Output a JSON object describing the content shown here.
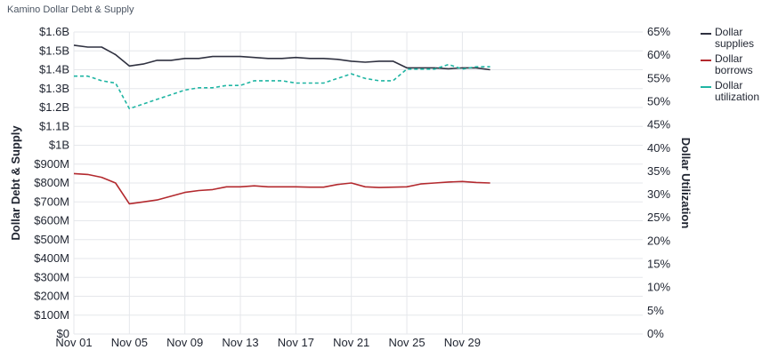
{
  "title": "Kamino Dollar Debt & Supply",
  "chart_data": {
    "type": "line",
    "title": "Kamino Dollar Debt & Supply",
    "xlabel": "",
    "ylabel": "Dollar Debt & Supply",
    "y2label": "Dollar Utilization",
    "xlim": [
      "2024-11-01",
      "2024-12-12"
    ],
    "ylim": [
      0,
      1600000000
    ],
    "y2lim": [
      0,
      65
    ],
    "grid": true,
    "legend": "right",
    "x_ticks": [
      "Nov 01",
      "Nov 05",
      "Nov 09",
      "Nov 13",
      "Nov 17",
      "Nov 21",
      "Nov 25",
      "Nov 29"
    ],
    "y_ticks": [
      "$0",
      "$100M",
      "$200M",
      "$300M",
      "$400M",
      "$500M",
      "$600M",
      "$700M",
      "$800M",
      "$900M",
      "$1B",
      "$1.1B",
      "$1.2B",
      "$1.3B",
      "$1.4B",
      "$1.5B",
      "$1.6B"
    ],
    "y2_ticks": [
      "0%",
      "5%",
      "10%",
      "15%",
      "20%",
      "25%",
      "30%",
      "35%",
      "40%",
      "45%",
      "50%",
      "55%",
      "60%",
      "65%"
    ],
    "x_dates": [
      "2024-11-01",
      "2024-11-02",
      "2024-11-03",
      "2024-11-04",
      "2024-11-05",
      "2024-11-06",
      "2024-11-07",
      "2024-11-08",
      "2024-11-09",
      "2024-11-10",
      "2024-11-11",
      "2024-11-12",
      "2024-11-13",
      "2024-11-14",
      "2024-11-15",
      "2024-11-16",
      "2024-11-17",
      "2024-11-18",
      "2024-11-19",
      "2024-11-20",
      "2024-11-21",
      "2024-11-22",
      "2024-11-23",
      "2024-11-24",
      "2024-11-25",
      "2024-11-26",
      "2024-11-27",
      "2024-11-28",
      "2024-11-29",
      "2024-11-30",
      "2024-12-01"
    ],
    "series": [
      {
        "name": "Dollar supplies",
        "axis": "left",
        "color": "#2f3140",
        "style": "solid",
        "values": [
          1530000000,
          1520000000,
          1520000000,
          1480000000,
          1420000000,
          1430000000,
          1450000000,
          1450000000,
          1460000000,
          1460000000,
          1470000000,
          1470000000,
          1470000000,
          1465000000,
          1460000000,
          1460000000,
          1465000000,
          1460000000,
          1460000000,
          1455000000,
          1445000000,
          1440000000,
          1445000000,
          1445000000,
          1410000000,
          1410000000,
          1410000000,
          1405000000,
          1410000000,
          1410000000,
          1400000000
        ]
      },
      {
        "name": "Dollar borrows",
        "axis": "left",
        "color": "#b3292e",
        "style": "solid",
        "values": [
          850000000,
          845000000,
          830000000,
          800000000,
          690000000,
          700000000,
          710000000,
          730000000,
          750000000,
          760000000,
          765000000,
          780000000,
          780000000,
          785000000,
          780000000,
          780000000,
          780000000,
          778000000,
          778000000,
          792000000,
          800000000,
          780000000,
          776000000,
          778000000,
          780000000,
          795000000,
          800000000,
          805000000,
          808000000,
          803000000,
          800000000
        ]
      },
      {
        "name": "Dollar utilization",
        "axis": "right",
        "color": "#1fb5a3",
        "style": "dashed",
        "values": [
          55.5,
          55.5,
          54.5,
          54,
          48.5,
          49.5,
          50.5,
          51.5,
          52.5,
          53,
          53,
          53.5,
          53.5,
          54.5,
          54.5,
          54.5,
          54,
          54,
          54,
          55,
          56,
          55,
          54.5,
          54.5,
          57,
          57,
          57,
          58,
          57,
          57.5,
          57.5
        ]
      }
    ]
  },
  "legend": {
    "items": [
      {
        "label": "Dollar supplies",
        "color": "#2f3140",
        "style": "solid"
      },
      {
        "label": "Dollar borrows",
        "color": "#b3292e",
        "style": "solid"
      },
      {
        "label": "Dollar utilization",
        "color": "#1fb5a3",
        "style": "dashed"
      }
    ]
  }
}
